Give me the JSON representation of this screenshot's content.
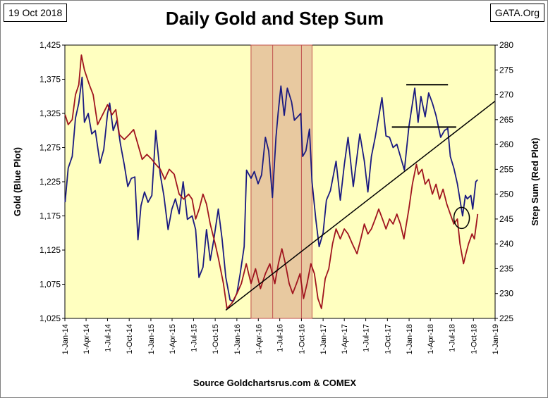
{
  "header": {
    "date_label": "19 Oct 2018",
    "source_label": "GATA.Org"
  },
  "footer": {
    "source": "Source Goldchartsrus.com & COMEX"
  },
  "colors": {
    "plot_background": "#ffffc0",
    "highlight_band": "#e8c9a0",
    "highlight_border": "#c0504d",
    "gold_series": "#1a1a80",
    "step_series": "#a0141e",
    "trend_line": "#000000"
  },
  "chart_data": {
    "type": "line",
    "title": "Daily Gold and Step Sum",
    "ylabel": "Gold   (Blue Plot)",
    "y2label": "Step Sum   (Red Plot)",
    "xlim": [
      "2014-01-01",
      "2019-01-01"
    ],
    "ylim": [
      1025,
      1425
    ],
    "y2lim": [
      225,
      280
    ],
    "yticks": [
      "1,025",
      "1,075",
      "1,125",
      "1,175",
      "1,225",
      "1,275",
      "1,325",
      "1,375",
      "1,425"
    ],
    "y2ticks": [
      "225",
      "230",
      "235",
      "240",
      "245",
      "250",
      "255",
      "260",
      "265",
      "270",
      "275",
      "280"
    ],
    "xtick_labels": [
      "1-Jan-14",
      "1-Apr-14",
      "1-Jul-14",
      "1-Oct-14",
      "1-Jan-15",
      "1-Apr-15",
      "1-Jul-15",
      "1-Oct-15",
      "1-Jan-16",
      "1-Apr-16",
      "1-Jul-16",
      "1-Oct-16",
      "1-Jan-17",
      "1-Apr-17",
      "1-Jul-17",
      "1-Oct-17",
      "1-Jan-18",
      "1-Apr-18",
      "1-Jul-18",
      "1-Oct-18",
      "1-Jan-19"
    ],
    "grid": false,
    "highlight_band": {
      "x_start": "2016-03-01",
      "x_end": "2016-11-15",
      "dividers": [
        "2016-06-01",
        "2016-10-01"
      ]
    },
    "series": [
      {
        "axis": "left",
        "points": [
          [
            "2014-01-02",
            1195
          ],
          [
            "2014-01-15",
            1245
          ],
          [
            "2014-02-01",
            1262
          ],
          [
            "2014-02-15",
            1318
          ],
          [
            "2014-03-01",
            1340
          ],
          [
            "2014-03-15",
            1378
          ],
          [
            "2014-03-25",
            1312
          ],
          [
            "2014-04-10",
            1325
          ],
          [
            "2014-04-25",
            1295
          ],
          [
            "2014-05-10",
            1300
          ],
          [
            "2014-05-30",
            1252
          ],
          [
            "2014-06-15",
            1272
          ],
          [
            "2014-07-01",
            1325
          ],
          [
            "2014-07-10",
            1340
          ],
          [
            "2014-07-25",
            1300
          ],
          [
            "2014-08-10",
            1315
          ],
          [
            "2014-08-25",
            1280
          ],
          [
            "2014-09-10",
            1250
          ],
          [
            "2014-09-25",
            1218
          ],
          [
            "2014-10-10",
            1230
          ],
          [
            "2014-10-25",
            1232
          ],
          [
            "2014-11-07",
            1140
          ],
          [
            "2014-11-20",
            1190
          ],
          [
            "2014-12-05",
            1210
          ],
          [
            "2014-12-20",
            1195
          ],
          [
            "2015-01-05",
            1205
          ],
          [
            "2015-01-22",
            1300
          ],
          [
            "2015-02-10",
            1235
          ],
          [
            "2015-02-25",
            1205
          ],
          [
            "2015-03-15",
            1155
          ],
          [
            "2015-03-31",
            1185
          ],
          [
            "2015-04-15",
            1200
          ],
          [
            "2015-05-01",
            1178
          ],
          [
            "2015-05-18",
            1225
          ],
          [
            "2015-06-05",
            1170
          ],
          [
            "2015-06-25",
            1175
          ],
          [
            "2015-07-10",
            1155
          ],
          [
            "2015-07-24",
            1085
          ],
          [
            "2015-08-10",
            1100
          ],
          [
            "2015-08-25",
            1155
          ],
          [
            "2015-09-10",
            1110
          ],
          [
            "2015-09-25",
            1140
          ],
          [
            "2015-10-14",
            1185
          ],
          [
            "2015-10-30",
            1142
          ],
          [
            "2015-11-15",
            1085
          ],
          [
            "2015-12-03",
            1052
          ],
          [
            "2015-12-17",
            1050
          ],
          [
            "2016-01-01",
            1062
          ],
          [
            "2016-01-15",
            1090
          ],
          [
            "2016-02-01",
            1130
          ],
          [
            "2016-02-11",
            1242
          ],
          [
            "2016-03-01",
            1230
          ],
          [
            "2016-03-15",
            1240
          ],
          [
            "2016-03-31",
            1222
          ],
          [
            "2016-04-15",
            1235
          ],
          [
            "2016-05-01",
            1290
          ],
          [
            "2016-05-15",
            1270
          ],
          [
            "2016-05-31",
            1202
          ],
          [
            "2016-06-15",
            1290
          ],
          [
            "2016-06-24",
            1325
          ],
          [
            "2016-07-06",
            1365
          ],
          [
            "2016-07-20",
            1322
          ],
          [
            "2016-08-02",
            1362
          ],
          [
            "2016-08-20",
            1342
          ],
          [
            "2016-09-01",
            1315
          ],
          [
            "2016-09-15",
            1320
          ],
          [
            "2016-09-28",
            1325
          ],
          [
            "2016-10-06",
            1262
          ],
          [
            "2016-10-20",
            1270
          ],
          [
            "2016-11-04",
            1302
          ],
          [
            "2016-11-15",
            1225
          ],
          [
            "2016-12-01",
            1170
          ],
          [
            "2016-12-15",
            1130
          ],
          [
            "2017-01-01",
            1150
          ],
          [
            "2017-01-15",
            1198
          ],
          [
            "2017-02-01",
            1212
          ],
          [
            "2017-02-25",
            1255
          ],
          [
            "2017-03-15",
            1198
          ],
          [
            "2017-04-01",
            1250
          ],
          [
            "2017-04-17",
            1290
          ],
          [
            "2017-05-09",
            1218
          ],
          [
            "2017-06-06",
            1295
          ],
          [
            "2017-06-25",
            1255
          ],
          [
            "2017-07-10",
            1210
          ],
          [
            "2017-07-25",
            1262
          ],
          [
            "2017-08-10",
            1290
          ],
          [
            "2017-09-08",
            1348
          ],
          [
            "2017-09-25",
            1292
          ],
          [
            "2017-10-10",
            1290
          ],
          [
            "2017-10-25",
            1275
          ],
          [
            "2017-11-10",
            1280
          ],
          [
            "2017-12-12",
            1242
          ],
          [
            "2017-12-31",
            1305
          ],
          [
            "2018-01-25",
            1362
          ],
          [
            "2018-02-08",
            1312
          ],
          [
            "2018-02-20",
            1350
          ],
          [
            "2018-03-10",
            1320
          ],
          [
            "2018-03-25",
            1355
          ],
          [
            "2018-04-10",
            1340
          ],
          [
            "2018-04-25",
            1322
          ],
          [
            "2018-05-15",
            1290
          ],
          [
            "2018-05-31",
            1300
          ],
          [
            "2018-06-14",
            1303
          ],
          [
            "2018-06-25",
            1262
          ],
          [
            "2018-07-10",
            1245
          ],
          [
            "2018-07-25",
            1222
          ],
          [
            "2018-08-16",
            1175
          ],
          [
            "2018-08-28",
            1205
          ],
          [
            "2018-09-05",
            1200
          ],
          [
            "2018-09-20",
            1205
          ],
          [
            "2018-09-28",
            1185
          ],
          [
            "2018-10-11",
            1225
          ],
          [
            "2018-10-19",
            1228
          ]
        ]
      },
      {
        "axis": "right",
        "points": [
          [
            "2014-01-02",
            266
          ],
          [
            "2014-01-15",
            264
          ],
          [
            "2014-02-01",
            265
          ],
          [
            "2014-02-15",
            270
          ],
          [
            "2014-03-01",
            272
          ],
          [
            "2014-03-12",
            278
          ],
          [
            "2014-03-25",
            275
          ],
          [
            "2014-04-15",
            272
          ],
          [
            "2014-05-01",
            270
          ],
          [
            "2014-05-20",
            264
          ],
          [
            "2014-06-10",
            266
          ],
          [
            "2014-07-01",
            268
          ],
          [
            "2014-07-20",
            266
          ],
          [
            "2014-08-05",
            267
          ],
          [
            "2014-08-20",
            262
          ],
          [
            "2014-09-10",
            261
          ],
          [
            "2014-10-01",
            262
          ],
          [
            "2014-10-20",
            263
          ],
          [
            "2014-11-07",
            260
          ],
          [
            "2014-11-25",
            257
          ],
          [
            "2014-12-15",
            258
          ],
          [
            "2015-01-05",
            257
          ],
          [
            "2015-01-22",
            256
          ],
          [
            "2015-02-10",
            255
          ],
          [
            "2015-03-01",
            253
          ],
          [
            "2015-03-20",
            255
          ],
          [
            "2015-04-10",
            254
          ],
          [
            "2015-05-01",
            250
          ],
          [
            "2015-05-20",
            249
          ],
          [
            "2015-06-10",
            250
          ],
          [
            "2015-06-25",
            249
          ],
          [
            "2015-07-10",
            245
          ],
          [
            "2015-07-25",
            247
          ],
          [
            "2015-08-10",
            250
          ],
          [
            "2015-08-25",
            248
          ],
          [
            "2015-09-10",
            244
          ],
          [
            "2015-10-01",
            240
          ],
          [
            "2015-10-15",
            237
          ],
          [
            "2015-11-05",
            232
          ],
          [
            "2015-11-20",
            227
          ],
          [
            "2015-12-10",
            228
          ],
          [
            "2016-01-01",
            230
          ],
          [
            "2016-01-20",
            232
          ],
          [
            "2016-02-10",
            236
          ],
          [
            "2016-03-01",
            232
          ],
          [
            "2016-03-20",
            235
          ],
          [
            "2016-04-10",
            231
          ],
          [
            "2016-05-01",
            234
          ],
          [
            "2016-05-20",
            236
          ],
          [
            "2016-06-10",
            232
          ],
          [
            "2016-06-25",
            236
          ],
          [
            "2016-07-10",
            239
          ],
          [
            "2016-07-25",
            236
          ],
          [
            "2016-08-10",
            232
          ],
          [
            "2016-08-25",
            230
          ],
          [
            "2016-09-10",
            232
          ],
          [
            "2016-09-25",
            234
          ],
          [
            "2016-10-10",
            229
          ],
          [
            "2016-10-25",
            232
          ],
          [
            "2016-11-10",
            236
          ],
          [
            "2016-11-25",
            234
          ],
          [
            "2016-12-10",
            229
          ],
          [
            "2016-12-25",
            227
          ],
          [
            "2017-01-10",
            233
          ],
          [
            "2017-01-25",
            235
          ],
          [
            "2017-02-10",
            240
          ],
          [
            "2017-02-25",
            243
          ],
          [
            "2017-03-15",
            241
          ],
          [
            "2017-04-01",
            243
          ],
          [
            "2017-04-17",
            242
          ],
          [
            "2017-05-05",
            240
          ],
          [
            "2017-05-25",
            238
          ],
          [
            "2017-06-10",
            241
          ],
          [
            "2017-06-25",
            244
          ],
          [
            "2017-07-10",
            242
          ],
          [
            "2017-07-25",
            243
          ],
          [
            "2017-08-10",
            245
          ],
          [
            "2017-08-25",
            247
          ],
          [
            "2017-09-10",
            245
          ],
          [
            "2017-09-25",
            243
          ],
          [
            "2017-10-10",
            245
          ],
          [
            "2017-10-25",
            244
          ],
          [
            "2017-11-10",
            246
          ],
          [
            "2017-11-25",
            244
          ],
          [
            "2017-12-10",
            241
          ],
          [
            "2017-12-31",
            247
          ],
          [
            "2018-01-15",
            252
          ],
          [
            "2018-02-01",
            256
          ],
          [
            "2018-02-10",
            254
          ],
          [
            "2018-02-25",
            255
          ],
          [
            "2018-03-10",
            252
          ],
          [
            "2018-03-25",
            253
          ],
          [
            "2018-04-10",
            250
          ],
          [
            "2018-04-25",
            252
          ],
          [
            "2018-05-10",
            249
          ],
          [
            "2018-05-25",
            251
          ],
          [
            "2018-06-10",
            248
          ],
          [
            "2018-06-25",
            246
          ],
          [
            "2018-07-10",
            244
          ],
          [
            "2018-07-25",
            245
          ],
          [
            "2018-08-05",
            240
          ],
          [
            "2018-08-20",
            236
          ],
          [
            "2018-08-30",
            238
          ],
          [
            "2018-09-10",
            240
          ],
          [
            "2018-09-25",
            242
          ],
          [
            "2018-10-05",
            241
          ],
          [
            "2018-10-19",
            246
          ]
        ]
      }
    ],
    "annotations": {
      "trend_line": [
        [
          "2015-11-15",
          1037
        ],
        [
          "2019-01-01",
          1343
        ]
      ],
      "resistance_lines": [
        {
          "x1": "2017-12-20",
          "x2": "2018-06-15",
          "y": 1367
        },
        {
          "x1": "2017-10-20",
          "x2": "2018-07-20",
          "y": 1305
        }
      ],
      "circle": {
        "x": "2018-08-12",
        "y": 1172
      }
    }
  }
}
